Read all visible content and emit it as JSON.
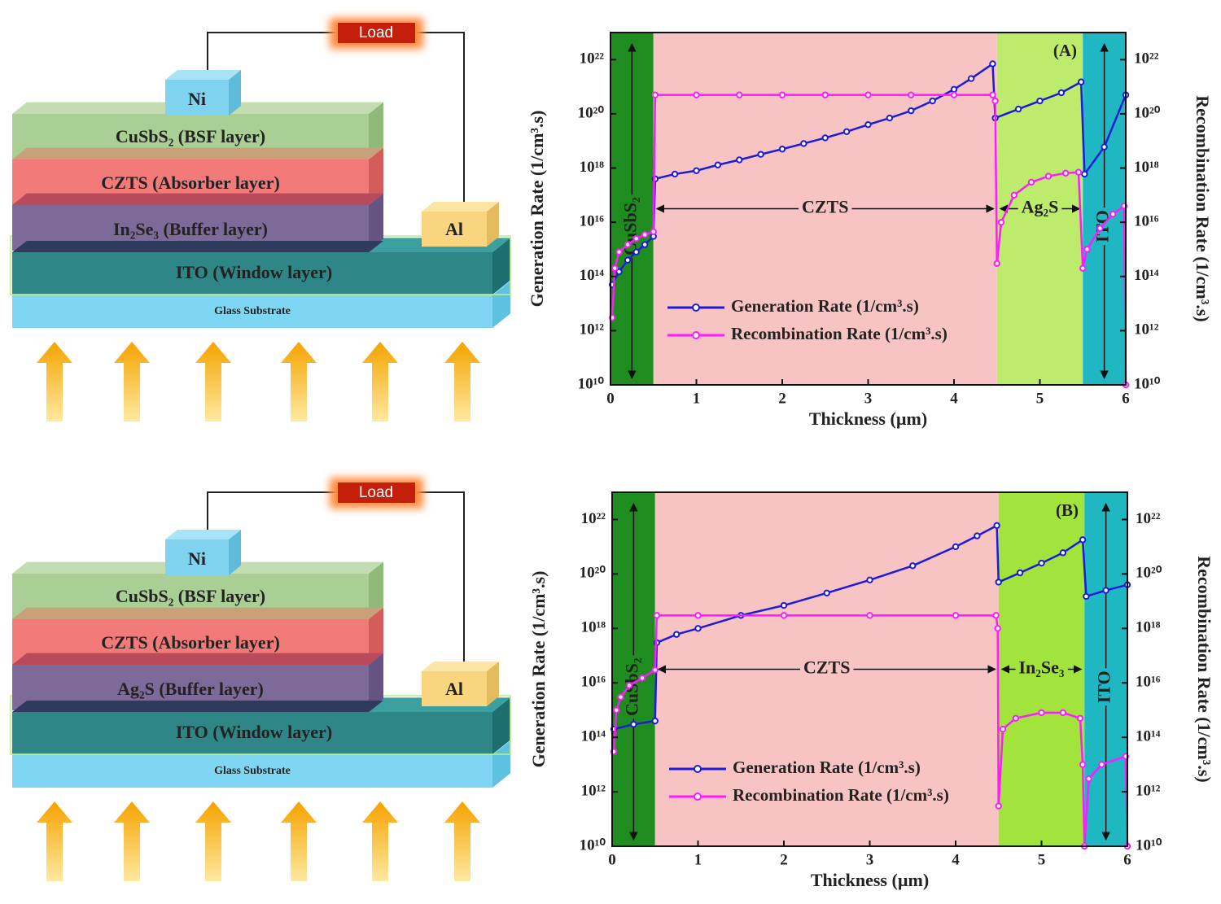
{
  "diagrams": [
    {
      "load": "Load",
      "ni": "Ni",
      "al": "Al",
      "layers": [
        "CuSbS₂ (BSF layer)",
        "CZTS (Absorber layer)",
        "In₂Se₃ (Buffer layer)"
      ],
      "window": "ITO (Window layer)",
      "substrate": "Glass Substrate"
    },
    {
      "load": "Load",
      "ni": "Ni",
      "al": "Al",
      "layers": [
        "CuSbS₂ (BSF layer)",
        "CZTS (Absorber layer)",
        "Ag₂S (Buffer layer)"
      ],
      "window": "ITO (Window layer)",
      "substrate": "Glass Substrate"
    }
  ],
  "chart_data": [
    {
      "type": "line",
      "panel_label": "(A)",
      "x_label": "Thickness (µm)",
      "y_label": "Generation Rate (1/cm³.s)",
      "y2_label": "Recombination Rate (1/cm³.s)",
      "xlim": [
        0,
        6
      ],
      "xticks": [
        0,
        1,
        2,
        3,
        4,
        5,
        6
      ],
      "ylim": [
        10000000000.0,
        1e+23
      ],
      "ylog": true,
      "yticks": [
        {
          "value": 10000000000.0,
          "label": "10¹⁰"
        },
        {
          "value": 1000000000000.0,
          "label": "10¹²"
        },
        {
          "value": 100000000000000.0,
          "label": "10¹⁴"
        },
        {
          "value": 1e+16,
          "label": "10¹⁶"
        },
        {
          "value": 1e+18,
          "label": "10¹⁸"
        },
        {
          "value": 1e+20,
          "label": "10²⁰"
        },
        {
          "value": 1e+22,
          "label": "10²²"
        }
      ],
      "y2lim": [
        10000000000.0,
        1e+23
      ],
      "y2ticks": [
        {
          "value": 10000000000.0,
          "label": "10¹⁰"
        },
        {
          "value": 1000000000000.0,
          "label": "10¹²"
        },
        {
          "value": 100000000000000.0,
          "label": "10¹⁴"
        },
        {
          "value": 1e+16,
          "label": "10¹⁶"
        },
        {
          "value": 1e+18,
          "label": "10¹⁸"
        },
        {
          "value": 1e+20,
          "label": "10²⁰"
        },
        {
          "value": 1e+22,
          "label": "10²²"
        }
      ],
      "legend": "lower left",
      "regions": [
        {
          "label": "CuSbS₂",
          "start": 0,
          "end": 0.5,
          "color": "#1e8c1e"
        },
        {
          "label": "CZTS",
          "start": 0.5,
          "end": 4.5,
          "color": "#f8c3c3"
        },
        {
          "label": "Ag₂S",
          "start": 4.5,
          "end": 5.5,
          "color": "#bdeb6c"
        },
        {
          "label": "ITO",
          "start": 5.5,
          "end": 6,
          "color": "#1fb7c2"
        }
      ],
      "series": [
        {
          "name": "Generation Rate (1/cm³.s)",
          "color": "#1c1cd8",
          "x": [
            0.02,
            0.1,
            0.2,
            0.3,
            0.4,
            0.5,
            0.52,
            0.75,
            1,
            1.25,
            1.5,
            1.75,
            2,
            2.25,
            2.5,
            2.75,
            3,
            3.25,
            3.5,
            3.75,
            4,
            4.2,
            4.45,
            4.48,
            4.75,
            5,
            5.25,
            5.48,
            5.52,
            5.75,
            6
          ],
          "values": [
            50000000000000.0,
            150000000000000.0,
            400000000000000.0,
            800000000000000.0,
            1500000000000000.0,
            3000000000000000.0,
            4e+17,
            6e+17,
            8e+17,
            1.3e+18,
            2e+18,
            3.2e+18,
            5e+18,
            8e+18,
            1.3e+19,
            2.2e+19,
            4e+19,
            7e+19,
            1.3e+20,
            3e+20,
            8e+20,
            2e+21,
            7e+21,
            7e+19,
            1.5e+20,
            3e+20,
            6e+20,
            1.5e+21,
            6e+17,
            6e+18,
            5e+20
          ]
        },
        {
          "name": "Recombination Rate (1/cm³.s)",
          "color": "#ff1aff",
          "x": [
            0.02,
            0.05,
            0.1,
            0.2,
            0.3,
            0.4,
            0.5,
            0.52,
            1,
            1.5,
            2,
            2.5,
            3,
            3.5,
            4,
            4.45,
            4.48,
            4.5,
            4.55,
            4.7,
            4.9,
            5.1,
            5.3,
            5.45,
            5.5,
            5.55,
            5.7,
            5.85,
            5.98,
            6
          ],
          "values": [
            3000000000000.0,
            200000000000000.0,
            800000000000000.0,
            1500000000000000.0,
            2500000000000000.0,
            3500000000000000.0,
            4500000000000000.0,
            5e+20,
            5e+20,
            5e+20,
            5e+20,
            5e+20,
            5e+20,
            5e+20,
            5e+20,
            5e+20,
            3e+20,
            300000000000000.0,
            1e+16,
            1e+17,
            3e+17,
            5e+17,
            6.5e+17,
            7e+17,
            200000000000000.0,
            1000000000000000.0,
            6000000000000000.0,
            2e+16,
            4e+16,
            10000000000.0
          ]
        }
      ]
    },
    {
      "type": "line",
      "panel_label": "(B)",
      "x_label": "Thickness (µm)",
      "y_label": "Generation Rate (1/cm³.s)",
      "y2_label": "Recombination Rate (1/cm³.s)",
      "xlim": [
        0,
        6
      ],
      "xticks": [
        0,
        1,
        2,
        3,
        4,
        5,
        6
      ],
      "ylim": [
        10000000000.0,
        1e+23
      ],
      "ylog": true,
      "yticks": [
        {
          "value": 10000000000.0,
          "label": "10¹⁰"
        },
        {
          "value": 1000000000000.0,
          "label": "10¹²"
        },
        {
          "value": 100000000000000.0,
          "label": "10¹⁴"
        },
        {
          "value": 1e+16,
          "label": "10¹⁶"
        },
        {
          "value": 1e+18,
          "label": "10¹⁸"
        },
        {
          "value": 1e+20,
          "label": "10²⁰"
        },
        {
          "value": 1e+22,
          "label": "10²²"
        }
      ],
      "y2lim": [
        10000000000.0,
        1e+23
      ],
      "y2ticks": [
        {
          "value": 10000000000.0,
          "label": "10¹⁰"
        },
        {
          "value": 1000000000000.0,
          "label": "10¹²"
        },
        {
          "value": 100000000000000.0,
          "label": "10¹⁴"
        },
        {
          "value": 1e+16,
          "label": "10¹⁶"
        },
        {
          "value": 1e+18,
          "label": "10¹⁸"
        },
        {
          "value": 1e+20,
          "label": "10²⁰"
        },
        {
          "value": 1e+22,
          "label": "10²²"
        }
      ],
      "legend": "lower left",
      "regions": [
        {
          "label": "CuSbS₂",
          "start": 0,
          "end": 0.5,
          "color": "#1e8c1e"
        },
        {
          "label": "CZTS",
          "start": 0.5,
          "end": 4.5,
          "color": "#f8c3c3"
        },
        {
          "label": "In₂Se₃",
          "start": 4.5,
          "end": 5.5,
          "color": "#a2e33c"
        },
        {
          "label": "ITO",
          "start": 5.5,
          "end": 6,
          "color": "#1fb7c2"
        }
      ],
      "series": [
        {
          "name": "Generation Rate (1/cm³.s)",
          "color": "#1c1cd8",
          "x": [
            0.02,
            0.25,
            0.5,
            0.52,
            0.75,
            1,
            1.5,
            2,
            2.5,
            3,
            3.5,
            4,
            4.25,
            4.48,
            4.5,
            4.75,
            5,
            5.25,
            5.48,
            5.52,
            5.75,
            6
          ],
          "values": [
            200000000000000.0,
            300000000000000.0,
            400000000000000.0,
            3e+17,
            6e+17,
            1e+18,
            3e+18,
            7e+18,
            2e+19,
            6e+19,
            2e+20,
            1e+21,
            2.5e+21,
            6e+21,
            5e+19,
            1.1e+20,
            2.5e+20,
            6e+20,
            1.8e+21,
            1.5e+19,
            2.5e+19,
            4e+19
          ]
        },
        {
          "name": "Recombination Rate (1/cm³.s)",
          "color": "#ff1aff",
          "x": [
            0.02,
            0.05,
            0.1,
            0.2,
            0.35,
            0.5,
            0.52,
            1,
            2,
            3,
            4,
            4.47,
            4.49,
            4.5,
            4.55,
            4.7,
            5,
            5.25,
            5.45,
            5.48,
            5.5,
            5.55,
            5.7,
            5.98,
            6
          ],
          "values": [
            30000000000000.0,
            1000000000000000.0,
            3000000000000000.0,
            8000000000000000.0,
            1.5e+16,
            3e+16,
            3e+18,
            3e+18,
            3e+18,
            3e+18,
            3e+18,
            3e+18,
            1e+18,
            300000000000.0,
            200000000000000.0,
            500000000000000.0,
            800000000000000.0,
            800000000000000.0,
            500000000000000.0,
            10000000000000.0,
            10000000000.0,
            3000000000000.0,
            10000000000000.0,
            20000000000000.0,
            10000000000.0
          ]
        }
      ]
    }
  ]
}
